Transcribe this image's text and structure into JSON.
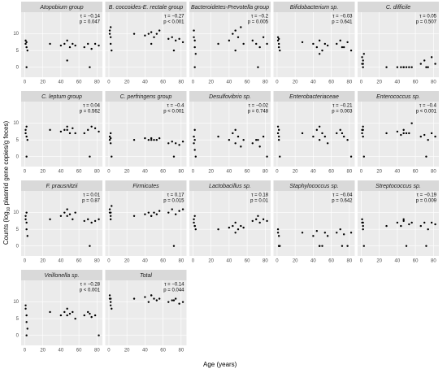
{
  "y_label": [
    "Counts (log",
    "10",
    " plasmid gene copies/g feces)"
  ],
  "x_label": "Age (years)",
  "chart_data": [
    {
      "type": "scatter",
      "title": "Atopobium group",
      "annotation": [
        "τ = −0.14",
        "p = 0.047"
      ],
      "x": [
        1,
        1,
        2,
        2,
        3,
        2,
        28,
        40,
        44,
        47,
        50,
        53,
        56,
        47,
        66,
        70,
        74,
        78,
        82,
        72
      ],
      "values": [
        7,
        8,
        6,
        7.5,
        5,
        0,
        7,
        6.5,
        7,
        8,
        6,
        7,
        6.5,
        2,
        6,
        7,
        5.5,
        7,
        6.5,
        0
      ],
      "xlim": [
        -4,
        86
      ],
      "ylim": [
        -3,
        16.5
      ],
      "xticks": [
        0,
        20,
        40,
        60,
        80
      ],
      "yticks": [
        0,
        5,
        10
      ]
    },
    {
      "type": "scatter",
      "title": "B. coccoides-E. rectale group",
      "annotation": [
        "τ = −0.27",
        "p < 0.001"
      ],
      "x": [
        1,
        1,
        2,
        2,
        3,
        2,
        28,
        40,
        44,
        47,
        50,
        53,
        56,
        47,
        66,
        70,
        74,
        78,
        82,
        72
      ],
      "values": [
        10,
        11,
        9,
        7,
        5,
        12,
        10,
        9.5,
        10,
        10.5,
        9,
        10,
        11,
        7,
        8.5,
        9,
        8,
        8.5,
        7.5,
        5
      ],
      "xlim": [
        -4,
        86
      ],
      "ylim": [
        -3,
        16.5
      ],
      "xticks": [
        0,
        20,
        40,
        60,
        80
      ],
      "yticks": [
        0,
        5,
        10
      ]
    },
    {
      "type": "scatter",
      "title": "Bacteroidetes-Prevotella group",
      "annotation": [
        "τ = −0.2",
        "p = 0.005"
      ],
      "x": [
        1,
        1,
        2,
        2,
        3,
        2,
        28,
        40,
        44,
        47,
        50,
        53,
        56,
        47,
        66,
        70,
        74,
        78,
        82,
        72
      ],
      "values": [
        9,
        11,
        6,
        8,
        4,
        0,
        7,
        8,
        10,
        11,
        9,
        12,
        7,
        5,
        8,
        7,
        6,
        9,
        7,
        0
      ],
      "xlim": [
        -4,
        86
      ],
      "ylim": [
        -3,
        16.5
      ],
      "xticks": [
        0,
        20,
        40,
        60,
        80
      ],
      "yticks": [
        0,
        5,
        10
      ]
    },
    {
      "type": "scatter",
      "title": "Bifidobacterium sp.",
      "annotation": [
        "τ = −0.03",
        "p = 0.641"
      ],
      "x": [
        1,
        1,
        2,
        2,
        3,
        2,
        28,
        40,
        44,
        47,
        50,
        53,
        56,
        47,
        66,
        70,
        74,
        78,
        82,
        72
      ],
      "values": [
        8,
        9,
        7,
        6,
        5,
        8.5,
        7.5,
        7,
        6,
        8,
        5,
        7,
        6.5,
        4,
        7,
        8,
        6,
        7.5,
        5,
        6
      ],
      "xlim": [
        -4,
        86
      ],
      "ylim": [
        -3,
        16.5
      ],
      "xticks": [
        0,
        20,
        40,
        60,
        80
      ],
      "yticks": [
        0,
        5,
        10
      ]
    },
    {
      "type": "scatter",
      "title": "C. difficile",
      "annotation": [
        "τ = 0.05",
        "p = 0.507"
      ],
      "x": [
        1,
        1,
        2,
        2,
        3,
        2,
        28,
        40,
        44,
        47,
        50,
        53,
        56,
        47,
        66,
        70,
        74,
        78,
        82,
        72
      ],
      "values": [
        3,
        1,
        0,
        2,
        4,
        1,
        0,
        0,
        0,
        0,
        0,
        0,
        0,
        0,
        1,
        2,
        0,
        3,
        1,
        0
      ],
      "xlim": [
        -4,
        86
      ],
      "ylim": [
        -3,
        16.5
      ],
      "xticks": [
        0,
        20,
        40,
        60,
        80
      ],
      "yticks": [
        0,
        5,
        10
      ]
    },
    {
      "type": "scatter",
      "title": "C. leptum group",
      "annotation": [
        "τ = 0.04",
        "p = 0.562"
      ],
      "x": [
        1,
        1,
        2,
        2,
        3,
        2,
        28,
        40,
        44,
        47,
        50,
        53,
        56,
        47,
        66,
        70,
        74,
        78,
        82,
        72
      ],
      "values": [
        8,
        7,
        6,
        9,
        5,
        0,
        8,
        7.5,
        8,
        9,
        7,
        8.5,
        7,
        8,
        7,
        8,
        9,
        8.5,
        7.5,
        0
      ],
      "xlim": [
        -4,
        86
      ],
      "ylim": [
        -3,
        16.5
      ],
      "xticks": [
        0,
        20,
        40,
        60,
        80
      ],
      "yticks": [
        0,
        5,
        10
      ]
    },
    {
      "type": "scatter",
      "title": "C. perfringens group",
      "annotation": [
        "τ = −0.4",
        "p < 0.001"
      ],
      "x": [
        1,
        1,
        2,
        2,
        3,
        2,
        28,
        40,
        44,
        47,
        50,
        53,
        56,
        47,
        66,
        70,
        74,
        78,
        82,
        72
      ],
      "values": [
        6,
        5,
        4,
        7,
        0,
        5.5,
        5,
        5.5,
        5,
        5.5,
        5,
        5,
        5.5,
        5,
        4,
        4.5,
        4,
        3.5,
        4.5,
        0
      ],
      "xlim": [
        -4,
        86
      ],
      "ylim": [
        -3,
        16.5
      ],
      "xticks": [
        0,
        20,
        40,
        60,
        80
      ],
      "yticks": [
        0,
        5,
        10
      ]
    },
    {
      "type": "scatter",
      "title": "Desulfovibrio sp.",
      "annotation": [
        "τ = −0.02",
        "p = 0.748"
      ],
      "x": [
        1,
        1,
        2,
        2,
        3,
        2,
        28,
        40,
        44,
        47,
        50,
        53,
        56,
        47,
        66,
        70,
        74,
        78,
        82,
        72
      ],
      "values": [
        6,
        4,
        2,
        8,
        0,
        5,
        6,
        5,
        7,
        4,
        6,
        3,
        5,
        8,
        4,
        5,
        3,
        6,
        0,
        5
      ],
      "xlim": [
        -4,
        86
      ],
      "ylim": [
        -3,
        16.5
      ],
      "xticks": [
        0,
        20,
        40,
        60,
        80
      ],
      "yticks": [
        0,
        5,
        10
      ]
    },
    {
      "type": "scatter",
      "title": "Enterobacteriaceae",
      "annotation": [
        "τ = −0.21",
        "p = 0.003"
      ],
      "x": [
        1,
        1,
        2,
        2,
        3,
        2,
        28,
        40,
        44,
        47,
        50,
        53,
        56,
        47,
        66,
        70,
        74,
        78,
        82,
        72
      ],
      "values": [
        9,
        7,
        8,
        6,
        0,
        5,
        7,
        6,
        8,
        5,
        7,
        6,
        4,
        9,
        7,
        8,
        6,
        5,
        0,
        7
      ],
      "xlim": [
        -4,
        86
      ],
      "ylim": [
        -3,
        16.5
      ],
      "xticks": [
        0,
        20,
        40,
        60,
        80
      ],
      "yticks": [
        0,
        5,
        10
      ]
    },
    {
      "type": "scatter",
      "title": "Enterococcus sp.",
      "annotation": [
        "τ = −0.4",
        "p < 0.001"
      ],
      "x": [
        1,
        1,
        2,
        2,
        3,
        2,
        28,
        40,
        44,
        47,
        50,
        53,
        56,
        47,
        66,
        70,
        74,
        78,
        82,
        72
      ],
      "values": [
        8,
        7,
        6,
        9,
        0,
        8,
        7,
        7.5,
        6.5,
        8,
        7,
        7,
        10,
        7,
        6,
        6.5,
        5,
        7,
        6,
        0
      ],
      "xlim": [
        -4,
        86
      ],
      "ylim": [
        -3,
        16.5
      ],
      "xticks": [
        0,
        20,
        40,
        60,
        80
      ],
      "yticks": [
        0,
        5,
        10
      ]
    },
    {
      "type": "scatter",
      "title": "F. prausnitzii",
      "annotation": [
        "τ = 0.01",
        "p = 0.87"
      ],
      "x": [
        1,
        1,
        2,
        2,
        3,
        2,
        28,
        40,
        44,
        47,
        50,
        53,
        56,
        47,
        66,
        70,
        74,
        78,
        82,
        72
      ],
      "values": [
        9,
        8,
        7,
        5,
        3,
        10,
        8,
        9,
        10,
        11,
        9.5,
        8,
        10,
        9,
        7.5,
        8,
        7,
        7.5,
        8,
        0
      ],
      "xlim": [
        -4,
        86
      ],
      "ylim": [
        -3,
        16.5
      ],
      "xticks": [
        0,
        20,
        40,
        60,
        80
      ],
      "yticks": [
        0,
        5,
        10
      ]
    },
    {
      "type": "scatter",
      "title": "Firmicutes",
      "annotation": [
        "τ = 0.17",
        "p = 0.015"
      ],
      "x": [
        1,
        1,
        2,
        2,
        3,
        2,
        28,
        40,
        44,
        47,
        50,
        53,
        56,
        47,
        66,
        70,
        74,
        78,
        82,
        72
      ],
      "values": [
        10,
        11,
        9,
        8,
        12,
        10,
        9,
        9.5,
        10,
        9,
        10,
        9.5,
        10.5,
        9,
        10,
        11,
        9.5,
        10.5,
        11,
        0
      ],
      "xlim": [
        -4,
        86
      ],
      "ylim": [
        -3,
        16.5
      ],
      "xticks": [
        0,
        20,
        40,
        60,
        80
      ],
      "yticks": [
        0,
        5,
        10
      ]
    },
    {
      "type": "scatter",
      "title": "Lactobacillus sp.",
      "annotation": [
        "τ = 0.18",
        "p = 0.01"
      ],
      "x": [
        1,
        1,
        2,
        2,
        3,
        2,
        28,
        40,
        44,
        47,
        50,
        53,
        56,
        47,
        66,
        70,
        74,
        78,
        82,
        72
      ],
      "values": [
        8,
        7,
        6,
        9,
        5,
        6,
        5,
        5.5,
        6,
        4,
        5,
        6,
        5.5,
        7,
        7.5,
        8,
        7,
        8,
        7.5,
        9
      ],
      "xlim": [
        -4,
        86
      ],
      "ylim": [
        -3,
        16.5
      ],
      "xticks": [
        0,
        20,
        40,
        60,
        80
      ],
      "yticks": [
        0,
        5,
        10
      ]
    },
    {
      "type": "scatter",
      "title": "Staphylococcus sp.",
      "annotation": [
        "τ = −0.04",
        "p = 0.642"
      ],
      "x": [
        1,
        1,
        2,
        2,
        3,
        2,
        28,
        40,
        44,
        47,
        50,
        53,
        56,
        47,
        66,
        70,
        74,
        78,
        82,
        72
      ],
      "values": [
        5,
        4,
        3,
        0,
        0,
        0,
        4,
        3,
        4.5,
        0,
        0,
        4,
        3,
        0,
        4,
        5,
        3.5,
        0,
        4,
        0
      ],
      "xlim": [
        -4,
        86
      ],
      "ylim": [
        -3,
        16.5
      ],
      "xticks": [
        0,
        20,
        40,
        60,
        80
      ],
      "yticks": [
        0,
        5,
        10
      ]
    },
    {
      "type": "scatter",
      "title": "Streptococcus sp.",
      "annotation": [
        "τ = −0.19",
        "p = 0.009"
      ],
      "x": [
        1,
        1,
        2,
        2,
        3,
        2,
        28,
        40,
        44,
        47,
        50,
        53,
        56,
        47,
        66,
        70,
        74,
        78,
        82,
        72
      ],
      "values": [
        8,
        7,
        6,
        5,
        0,
        7,
        6,
        7,
        6,
        7.5,
        0,
        6.5,
        7,
        8,
        6,
        7,
        5,
        7,
        6.5,
        0
      ],
      "xlim": [
        -4,
        86
      ],
      "ylim": [
        -3,
        16.5
      ],
      "xticks": [
        0,
        20,
        40,
        60,
        80
      ],
      "yticks": [
        0,
        5,
        10
      ]
    },
    {
      "type": "scatter",
      "title": "Veillonella sp.",
      "annotation": [
        "τ = −0.28",
        "p < 0.001"
      ],
      "x": [
        1,
        1,
        2,
        2,
        3,
        2,
        28,
        40,
        44,
        47,
        50,
        53,
        56,
        47,
        66,
        70,
        74,
        78,
        82,
        72
      ],
      "values": [
        9,
        8,
        6,
        4,
        2,
        0,
        7,
        6,
        7,
        8,
        6.5,
        7,
        5,
        6,
        6,
        7,
        5.5,
        6,
        0,
        6.5
      ],
      "xlim": [
        -4,
        86
      ],
      "ylim": [
        -3,
        16.5
      ],
      "xticks": [
        0,
        20,
        40,
        60,
        80
      ],
      "yticks": [
        0,
        5,
        10
      ]
    },
    {
      "type": "scatter",
      "title": "Total",
      "annotation": [
        "τ = −0.14",
        "p = 0.044"
      ],
      "x": [
        1,
        1,
        2,
        2,
        3,
        2,
        28,
        40,
        44,
        47,
        50,
        53,
        56,
        47,
        66,
        70,
        74,
        78,
        82,
        72
      ],
      "values": [
        11,
        12,
        10,
        9,
        8,
        11,
        11,
        11.5,
        10,
        12,
        11,
        10.5,
        11,
        12,
        10,
        10.5,
        11,
        9.5,
        10,
        10.5
      ],
      "xlim": [
        -4,
        86
      ],
      "ylim": [
        -3,
        16.5
      ],
      "xticks": [
        0,
        20,
        40,
        60,
        80
      ],
      "yticks": [
        0,
        5,
        10
      ]
    }
  ]
}
